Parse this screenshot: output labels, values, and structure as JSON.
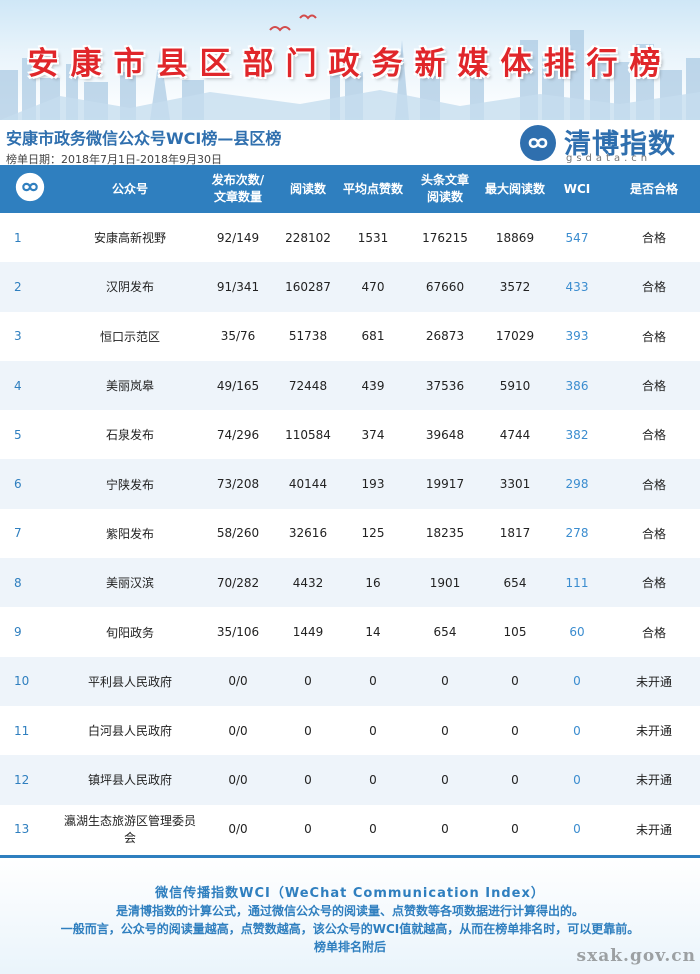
{
  "banner": {
    "title": "安康市县区部门政务新媒体排行榜"
  },
  "header": {
    "subtitle": "安康市政务微信公众号WCI榜—县区榜",
    "date_label": "榜单日期：2018年7月1日-2018年9月30日"
  },
  "logo": {
    "name": "清博指数",
    "domain": "gsdata.cn",
    "icon": "infinity-icon"
  },
  "table": {
    "columns": [
      "",
      "公众号",
      "发布次数/\n文章数量",
      "阅读数",
      "平均点赞数",
      "头条文章\n阅读数",
      "最大阅读数",
      "WCI",
      "是否合格"
    ],
    "rows": [
      {
        "rank": "1",
        "name": "安康高新视野",
        "posts": "92/149",
        "reads": "228102",
        "avg_likes": "1531",
        "head_reads": "176215",
        "max_reads": "18869",
        "wci": "547",
        "qualified": "合格"
      },
      {
        "rank": "2",
        "name": "汉阴发布",
        "posts": "91/341",
        "reads": "160287",
        "avg_likes": "470",
        "head_reads": "67660",
        "max_reads": "3572",
        "wci": "433",
        "qualified": "合格"
      },
      {
        "rank": "3",
        "name": "恒口示范区",
        "posts": "35/76",
        "reads": "51738",
        "avg_likes": "681",
        "head_reads": "26873",
        "max_reads": "17029",
        "wci": "393",
        "qualified": "合格"
      },
      {
        "rank": "4",
        "name": "美丽岚皋",
        "posts": "49/165",
        "reads": "72448",
        "avg_likes": "439",
        "head_reads": "37536",
        "max_reads": "5910",
        "wci": "386",
        "qualified": "合格"
      },
      {
        "rank": "5",
        "name": "石泉发布",
        "posts": "74/296",
        "reads": "110584",
        "avg_likes": "374",
        "head_reads": "39648",
        "max_reads": "4744",
        "wci": "382",
        "qualified": "合格"
      },
      {
        "rank": "6",
        "name": "宁陕发布",
        "posts": "73/208",
        "reads": "40144",
        "avg_likes": "193",
        "head_reads": "19917",
        "max_reads": "3301",
        "wci": "298",
        "qualified": "合格"
      },
      {
        "rank": "7",
        "name": "紫阳发布",
        "posts": "58/260",
        "reads": "32616",
        "avg_likes": "125",
        "head_reads": "18235",
        "max_reads": "1817",
        "wci": "278",
        "qualified": "合格"
      },
      {
        "rank": "8",
        "name": "美丽汉滨",
        "posts": "70/282",
        "reads": "4432",
        "avg_likes": "16",
        "head_reads": "1901",
        "max_reads": "654",
        "wci": "111",
        "qualified": "合格"
      },
      {
        "rank": "9",
        "name": "旬阳政务",
        "posts": "35/106",
        "reads": "1449",
        "avg_likes": "14",
        "head_reads": "654",
        "max_reads": "105",
        "wci": "60",
        "qualified": "合格"
      },
      {
        "rank": "10",
        "name": "平利县人民政府",
        "posts": "0/0",
        "reads": "0",
        "avg_likes": "0",
        "head_reads": "0",
        "max_reads": "0",
        "wci": "0",
        "qualified": "未开通"
      },
      {
        "rank": "11",
        "name": "白河县人民政府",
        "posts": "0/0",
        "reads": "0",
        "avg_likes": "0",
        "head_reads": "0",
        "max_reads": "0",
        "wci": "0",
        "qualified": "未开通"
      },
      {
        "rank": "12",
        "name": "镇坪县人民政府",
        "posts": "0/0",
        "reads": "0",
        "avg_likes": "0",
        "head_reads": "0",
        "max_reads": "0",
        "wci": "0",
        "qualified": "未开通"
      },
      {
        "rank": "13",
        "name": "瀛湖生态旅游区管理委员会",
        "posts": "0/0",
        "reads": "0",
        "avg_likes": "0",
        "head_reads": "0",
        "max_reads": "0",
        "wci": "0",
        "qualified": "未开通"
      }
    ]
  },
  "footer": {
    "line1": "微信传播指数WCI（WeChat Communication Index）",
    "line2": "是清博指数的计算公式，通过微信公众号的阅读量、点赞数等各项数据进行计算得出的。",
    "line3": "一般而言，公众号的阅读量越高，点赞数越高，该公众号的WCI值就越高，从而在榜单排名时，可以更靠前。",
    "line4": "榜单排名附后",
    "watermark": "sxak.gov.cn"
  },
  "colors": {
    "accent": "#2f7fbf",
    "title_red": "#e0262a",
    "wci_blue": "#3a8ccf"
  }
}
